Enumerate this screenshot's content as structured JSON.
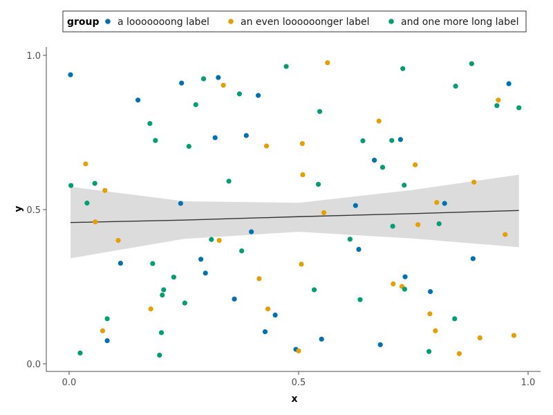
{
  "chart_data": {
    "type": "scatter",
    "xlabel": "x",
    "ylabel": "y",
    "xlim": [
      -0.05,
      1.03
    ],
    "ylim": [
      -0.02,
      1.02
    ],
    "x_ticks": [
      0.0,
      0.5,
      1.0
    ],
    "y_ticks": [
      0.0,
      0.5,
      1.0
    ],
    "x_tick_labels": [
      "0.0",
      "0.5",
      "1.0"
    ],
    "y_tick_labels": [
      "0.0",
      "0.5",
      "1.0"
    ],
    "grid": false,
    "legend": {
      "title": "group",
      "placement": "top",
      "entries": [
        "a looooooong label",
        "an even loooooonger label",
        "and one more long label"
      ]
    },
    "series": [
      {
        "name": "a looooooong label",
        "color": "#0072b2",
        "points": [
          [
            0.003,
            0.937
          ],
          [
            0.083,
            0.075
          ],
          [
            0.112,
            0.326
          ],
          [
            0.15,
            0.855
          ],
          [
            0.243,
            0.52
          ],
          [
            0.245,
            0.91
          ],
          [
            0.287,
            0.339
          ],
          [
            0.297,
            0.294
          ],
          [
            0.318,
            0.733
          ],
          [
            0.325,
            0.928
          ],
          [
            0.36,
            0.21
          ],
          [
            0.386,
            0.74
          ],
          [
            0.397,
            0.428
          ],
          [
            0.412,
            0.87
          ],
          [
            0.427,
            0.104
          ],
          [
            0.449,
            0.158
          ],
          [
            0.494,
            0.047
          ],
          [
            0.55,
            0.08
          ],
          [
            0.624,
            0.513
          ],
          [
            0.631,
            0.371
          ],
          [
            0.665,
            0.66
          ],
          [
            0.678,
            0.062
          ],
          [
            0.722,
            0.727
          ],
          [
            0.732,
            0.282
          ],
          [
            0.787,
            0.234
          ],
          [
            0.818,
            0.52
          ],
          [
            0.88,
            0.341
          ],
          [
            0.958,
            0.908
          ]
        ]
      },
      {
        "name": "an even loooooonger label",
        "color": "#e69f00",
        "points": [
          [
            0.036,
            0.648
          ],
          [
            0.057,
            0.46
          ],
          [
            0.073,
            0.107
          ],
          [
            0.078,
            0.562
          ],
          [
            0.107,
            0.4
          ],
          [
            0.178,
            0.178
          ],
          [
            0.327,
            0.4
          ],
          [
            0.336,
            0.903
          ],
          [
            0.43,
            0.706
          ],
          [
            0.414,
            0.276
          ],
          [
            0.433,
            0.178
          ],
          [
            0.5,
            0.042
          ],
          [
            0.506,
            0.323
          ],
          [
            0.508,
            0.714
          ],
          [
            0.509,
            0.613
          ],
          [
            0.555,
            0.49
          ],
          [
            0.563,
            0.976
          ],
          [
            0.675,
            0.787
          ],
          [
            0.706,
            0.259
          ],
          [
            0.725,
            0.251
          ],
          [
            0.754,
            0.645
          ],
          [
            0.76,
            0.451
          ],
          [
            0.786,
            0.162
          ],
          [
            0.798,
            0.107
          ],
          [
            0.801,
            0.523
          ],
          [
            0.85,
            0.033
          ],
          [
            0.882,
            0.589
          ],
          [
            0.895,
            0.084
          ],
          [
            0.935,
            0.855
          ],
          [
            0.95,
            0.419
          ],
          [
            0.969,
            0.092
          ]
        ]
      },
      {
        "name": "and one more long label",
        "color": "#009e73",
        "points": [
          [
            0.004,
            0.578
          ],
          [
            0.024,
            0.035
          ],
          [
            0.039,
            0.521
          ],
          [
            0.056,
            0.585
          ],
          [
            0.083,
            0.146
          ],
          [
            0.176,
            0.779
          ],
          [
            0.182,
            0.325
          ],
          [
            0.188,
            0.724
          ],
          [
            0.197,
            0.028
          ],
          [
            0.201,
            0.101
          ],
          [
            0.203,
            0.223
          ],
          [
            0.206,
            0.24
          ],
          [
            0.228,
            0.281
          ],
          [
            0.252,
            0.197
          ],
          [
            0.261,
            0.705
          ],
          [
            0.276,
            0.84
          ],
          [
            0.293,
            0.924
          ],
          [
            0.31,
            0.403
          ],
          [
            0.348,
            0.592
          ],
          [
            0.371,
            0.875
          ],
          [
            0.376,
            0.366
          ],
          [
            0.473,
            0.964
          ],
          [
            0.534,
            0.24
          ],
          [
            0.543,
            0.582
          ],
          [
            0.546,
            0.818
          ],
          [
            0.612,
            0.404
          ],
          [
            0.634,
            0.208
          ],
          [
            0.64,
            0.723
          ],
          [
            0.683,
            0.637
          ],
          [
            0.703,
            0.724
          ],
          [
            0.705,
            0.446
          ],
          [
            0.727,
            0.957
          ],
          [
            0.73,
            0.579
          ],
          [
            0.731,
            0.242
          ],
          [
            0.784,
            0.04
          ],
          [
            0.806,
            0.454
          ],
          [
            0.84,
            0.146
          ],
          [
            0.842,
            0.9
          ],
          [
            0.877,
            0.973
          ],
          [
            0.932,
            0.837
          ],
          [
            0.98,
            0.83
          ]
        ]
      }
    ],
    "trend": {
      "color": "#333333",
      "band_color": "#dcdcdc",
      "points": [
        {
          "x": 0.003,
          "y": 0.458,
          "lo": 0.342,
          "hi": 0.574
        },
        {
          "x": 0.25,
          "y": 0.466,
          "lo": 0.405,
          "hi": 0.527
        },
        {
          "x": 0.5,
          "y": 0.477,
          "lo": 0.428,
          "hi": 0.522
        },
        {
          "x": 0.75,
          "y": 0.487,
          "lo": 0.406,
          "hi": 0.564
        },
        {
          "x": 0.98,
          "y": 0.497,
          "lo": 0.378,
          "hi": 0.613
        }
      ]
    }
  }
}
